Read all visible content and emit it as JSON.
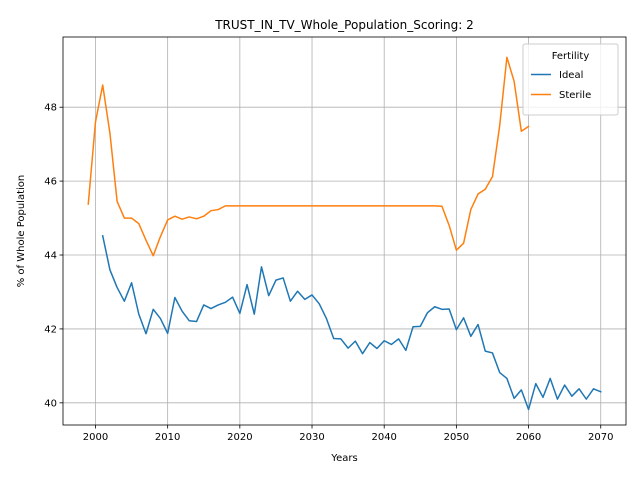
{
  "chart_data": {
    "type": "line",
    "title": "TRUST_IN_TV_Whole_Population_Scoring: 2",
    "xlabel": "Years",
    "ylabel": "% of Whole Population",
    "xlim": [
      1995.5,
      2073.5
    ],
    "ylim": [
      39.4,
      49.9
    ],
    "xticks": [
      2000,
      2010,
      2020,
      2030,
      2040,
      2050,
      2060,
      2070
    ],
    "yticks": [
      40,
      42,
      44,
      46,
      48
    ],
    "grid": true,
    "legend": {
      "title": "Fertility",
      "placement": "top-right"
    },
    "series": [
      {
        "name": "Ideal",
        "color": "#1f77b4",
        "x": [
          2001,
          2002,
          2003,
          2004,
          2005,
          2006,
          2007,
          2008,
          2009,
          2010,
          2011,
          2012,
          2013,
          2014,
          2015,
          2016,
          2017,
          2018,
          2019,
          2020,
          2021,
          2022,
          2023,
          2024,
          2025,
          2026,
          2027,
          2028,
          2029,
          2030,
          2031,
          2032,
          2033,
          2034,
          2035,
          2036,
          2037,
          2038,
          2039,
          2040,
          2041,
          2042,
          2043,
          2044,
          2045,
          2046,
          2047,
          2048,
          2049,
          2050,
          2051,
          2052,
          2053,
          2054,
          2055,
          2056,
          2057,
          2058,
          2059,
          2060,
          2061,
          2062,
          2063,
          2064,
          2065,
          2066,
          2067,
          2068,
          2069,
          2070
        ],
        "values": [
          44.52,
          43.6,
          43.12,
          42.75,
          43.25,
          42.4,
          41.87,
          42.53,
          42.28,
          41.88,
          42.85,
          42.48,
          42.22,
          42.2,
          42.65,
          42.55,
          42.65,
          42.72,
          42.86,
          42.42,
          43.2,
          42.4,
          43.68,
          42.9,
          43.32,
          43.38,
          42.75,
          43.02,
          42.8,
          42.92,
          42.68,
          42.28,
          41.74,
          41.73,
          41.48,
          41.67,
          41.33,
          41.63,
          41.47,
          41.68,
          41.58,
          41.73,
          41.42,
          42.06,
          42.07,
          42.44,
          42.6,
          42.53,
          42.54,
          41.98,
          42.3,
          41.8,
          42.12,
          41.4,
          41.35,
          40.82,
          40.66,
          40.12,
          40.35,
          39.82,
          40.52,
          40.15,
          40.66,
          40.1,
          40.48,
          40.18,
          40.38,
          40.1,
          40.38,
          40.3
        ]
      },
      {
        "name": "Sterile",
        "color": "#ff7f0e",
        "x": [
          1999,
          2000,
          2001,
          2002,
          2003,
          2004,
          2005,
          2006,
          2007,
          2008,
          2009,
          2010,
          2011,
          2012,
          2013,
          2014,
          2015,
          2016,
          2017,
          2018,
          2019,
          2020,
          2021,
          2022,
          2023,
          2024,
          2025,
          2026,
          2027,
          2028,
          2029,
          2030,
          2031,
          2032,
          2033,
          2034,
          2035,
          2036,
          2037,
          2038,
          2039,
          2040,
          2041,
          2042,
          2043,
          2044,
          2045,
          2046,
          2047,
          2048,
          2049,
          2050,
          2051,
          2052,
          2053,
          2054,
          2055,
          2056,
          2057,
          2058,
          2059,
          2060
        ],
        "values": [
          45.38,
          47.6,
          48.6,
          47.3,
          45.45,
          45.0,
          45.0,
          44.85,
          44.4,
          43.98,
          44.5,
          44.95,
          45.05,
          44.97,
          45.03,
          44.98,
          45.05,
          45.2,
          45.23,
          45.33,
          45.33,
          45.33,
          45.33,
          45.33,
          45.33,
          45.33,
          45.33,
          45.33,
          45.33,
          45.33,
          45.33,
          45.33,
          45.33,
          45.33,
          45.33,
          45.33,
          45.33,
          45.33,
          45.33,
          45.33,
          45.33,
          45.33,
          45.33,
          45.33,
          45.33,
          45.33,
          45.33,
          45.33,
          45.33,
          45.32,
          44.8,
          44.13,
          44.32,
          45.23,
          45.65,
          45.78,
          46.12,
          47.5,
          49.35,
          48.7,
          47.35,
          47.48
        ]
      }
    ]
  }
}
